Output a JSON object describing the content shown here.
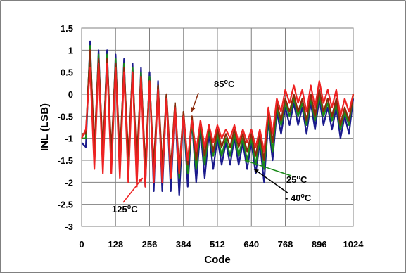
{
  "chart_data": {
    "type": "line",
    "title": "",
    "xlabel": "Code",
    "ylabel": "INL (LSB)",
    "xlim": [
      0,
      1024
    ],
    "ylim": [
      -3,
      1.5
    ],
    "x_ticks": [
      0,
      128,
      256,
      384,
      512,
      640,
      768,
      896,
      1024
    ],
    "x_tick_labels": [
      "0",
      "128",
      "256",
      "384",
      "512",
      "640",
      "768",
      "896",
      "1024"
    ],
    "y_ticks": [
      1.5,
      1,
      0.5,
      0,
      -0.5,
      -1,
      -1.5,
      -2,
      -2.5,
      -3
    ],
    "y_tick_labels": [
      "1.5",
      "1",
      "0.5",
      "0",
      "-0.5",
      "-1",
      "-1.5",
      "-2",
      "-2.5",
      "-3"
    ],
    "grid": true,
    "legend": "none",
    "colors": {
      "neg40": "#1a1a8c",
      "t25": "#1a8a1a",
      "t85": "#8b2a0a",
      "t125": "#ee2222",
      "arrow_85": "#8b2a0a",
      "arrow_125": "#ee2222",
      "arrow_25": "#1a8a1a",
      "arrow_neg40": "#000000"
    },
    "series": [
      {
        "key": "neg40",
        "x": [
          0,
          16,
          32,
          48,
          64,
          80,
          96,
          112,
          128,
          144,
          160,
          176,
          192,
          208,
          224,
          240,
          256,
          272,
          288,
          304,
          320,
          336,
          352,
          368,
          384,
          400,
          416,
          432,
          448,
          464,
          480,
          496,
          512,
          528,
          544,
          560,
          576,
          592,
          608,
          624,
          640,
          656,
          672,
          688,
          704,
          720,
          736,
          752,
          768,
          784,
          800,
          816,
          832,
          848,
          864,
          880,
          896,
          912,
          928,
          944,
          960,
          976,
          992,
          1008,
          1024
        ],
        "y": [
          -1.1,
          -1.2,
          1.2,
          -1.6,
          1.0,
          -1.6,
          1.0,
          -1.7,
          0.9,
          -1.8,
          0.8,
          -1.9,
          0.7,
          -2.0,
          0.6,
          -2.1,
          0.5,
          -2.2,
          0.3,
          -2.2,
          0.0,
          -2.2,
          -0.2,
          -2.3,
          -0.4,
          -2.1,
          -0.6,
          -2.0,
          -0.8,
          -1.9,
          -0.9,
          -1.7,
          -1.0,
          -1.6,
          -1.1,
          -1.6,
          -1.0,
          -1.6,
          -1.1,
          -1.7,
          -1.1,
          -1.8,
          -1.1,
          -2.0,
          -0.6,
          -1.5,
          -0.4,
          -0.9,
          -0.3,
          -0.7,
          -0.2,
          -0.7,
          -0.3,
          -0.9,
          -0.2,
          -0.8,
          -0.1,
          -0.7,
          -0.3,
          -0.8,
          -0.3,
          -1.0,
          -0.5,
          -0.9,
          -0.1
        ]
      },
      {
        "key": "t25",
        "x": [
          0,
          16,
          32,
          48,
          64,
          80,
          96,
          112,
          128,
          144,
          160,
          176,
          192,
          208,
          224,
          240,
          256,
          272,
          288,
          304,
          320,
          336,
          352,
          368,
          384,
          400,
          416,
          432,
          448,
          464,
          480,
          496,
          512,
          528,
          544,
          560,
          576,
          592,
          608,
          624,
          640,
          656,
          672,
          688,
          704,
          720,
          736,
          752,
          768,
          784,
          800,
          816,
          832,
          848,
          864,
          880,
          896,
          912,
          928,
          944,
          960,
          976,
          992,
          1008,
          1024
        ],
        "y": [
          -1.0,
          -1.0,
          1.1,
          -1.4,
          0.9,
          -1.5,
          0.9,
          -1.5,
          0.8,
          -1.6,
          0.7,
          -1.7,
          0.6,
          -1.8,
          0.5,
          -1.8,
          0.4,
          -1.9,
          0.2,
          -1.9,
          0.0,
          -1.9,
          -0.2,
          -1.9,
          -0.4,
          -1.8,
          -0.6,
          -1.7,
          -0.7,
          -1.6,
          -0.8,
          -1.4,
          -0.9,
          -1.4,
          -1.0,
          -1.4,
          -0.9,
          -1.4,
          -1.0,
          -1.5,
          -1.0,
          -1.6,
          -1.0,
          -1.7,
          -0.5,
          -1.3,
          -0.3,
          -0.7,
          -0.2,
          -0.5,
          -0.1,
          -0.5,
          -0.2,
          -0.7,
          -0.1,
          -0.6,
          0.0,
          -0.5,
          -0.2,
          -0.6,
          -0.2,
          -0.8,
          -0.4,
          -0.7,
          0.0
        ]
      },
      {
        "key": "t85",
        "x": [
          0,
          16,
          32,
          48,
          64,
          80,
          96,
          112,
          128,
          144,
          160,
          176,
          192,
          208,
          224,
          240,
          256,
          272,
          288,
          304,
          320,
          336,
          352,
          368,
          384,
          400,
          416,
          432,
          448,
          464,
          480,
          496,
          512,
          528,
          544,
          560,
          576,
          592,
          608,
          624,
          640,
          656,
          672,
          688,
          704,
          720,
          736,
          752,
          768,
          784,
          800,
          816,
          832,
          848,
          864,
          880,
          896,
          912,
          928,
          944,
          960,
          976,
          992,
          1008,
          1024
        ],
        "y": [
          -0.9,
          -0.9,
          1.0,
          -1.2,
          0.8,
          -1.3,
          0.8,
          -1.3,
          0.7,
          -1.4,
          0.6,
          -1.4,
          0.5,
          -1.5,
          0.4,
          -1.6,
          0.3,
          -1.6,
          0.2,
          -1.6,
          0.0,
          -1.7,
          -0.2,
          -1.7,
          -0.4,
          -1.6,
          -0.5,
          -1.5,
          -0.6,
          -1.4,
          -0.7,
          -1.3,
          -0.8,
          -1.2,
          -0.9,
          -1.2,
          -0.8,
          -1.2,
          -0.9,
          -1.3,
          -0.9,
          -1.4,
          -0.9,
          -1.5,
          -0.4,
          -1.1,
          -0.2,
          -0.6,
          -0.1,
          -0.4,
          0.0,
          -0.4,
          -0.1,
          -0.6,
          0.0,
          -0.5,
          0.1,
          -0.4,
          -0.1,
          -0.5,
          -0.1,
          -0.7,
          -0.3,
          -0.6,
          0.0
        ]
      },
      {
        "key": "t125",
        "x": [
          0,
          16,
          32,
          48,
          64,
          80,
          96,
          112,
          128,
          144,
          160,
          176,
          192,
          208,
          224,
          240,
          256,
          272,
          288,
          304,
          320,
          336,
          352,
          368,
          384,
          400,
          416,
          432,
          448,
          464,
          480,
          496,
          512,
          528,
          544,
          560,
          576,
          592,
          608,
          624,
          640,
          656,
          672,
          688,
          704,
          720,
          736,
          752,
          768,
          784,
          800,
          816,
          832,
          848,
          864,
          880,
          896,
          912,
          928,
          944,
          960,
          976,
          992,
          1008,
          1024
        ],
        "y": [
          -1.0,
          -0.8,
          0.6,
          -1.7,
          0.7,
          -1.8,
          0.7,
          -1.8,
          0.6,
          -1.9,
          0.5,
          -2.0,
          0.5,
          -2.1,
          0.4,
          -2.1,
          0.3,
          -2.0,
          0.1,
          -2.0,
          -0.1,
          -1.9,
          -0.3,
          -1.8,
          -0.5,
          -1.5,
          -0.6,
          -1.3,
          -0.6,
          -1.2,
          -0.7,
          -1.1,
          -0.7,
          -1.0,
          -0.8,
          -1.0,
          -0.7,
          -1.1,
          -0.8,
          -1.1,
          -0.8,
          -1.2,
          -0.8,
          -1.3,
          -0.3,
          -0.9,
          -0.1,
          -0.4,
          0.1,
          -0.2,
          0.2,
          -0.2,
          0.1,
          -0.4,
          0.2,
          -0.3,
          0.3,
          -0.2,
          0.1,
          -0.3,
          0.1,
          -0.5,
          -0.1,
          -0.4,
          0.0
        ]
      }
    ],
    "annotations": [
      {
        "key": "t85",
        "text": "85°C",
        "point_x": 415,
        "point_y": -0.4
      },
      {
        "key": "t125",
        "text": "125°C",
        "point_x": 230,
        "point_y": -1.9
      },
      {
        "key": "t25",
        "text": "25°C",
        "point_x": 615,
        "point_y": -1.5
      },
      {
        "key": "neg40",
        "text": "- 40°C",
        "point_x": 650,
        "point_y": -1.7
      }
    ]
  }
}
